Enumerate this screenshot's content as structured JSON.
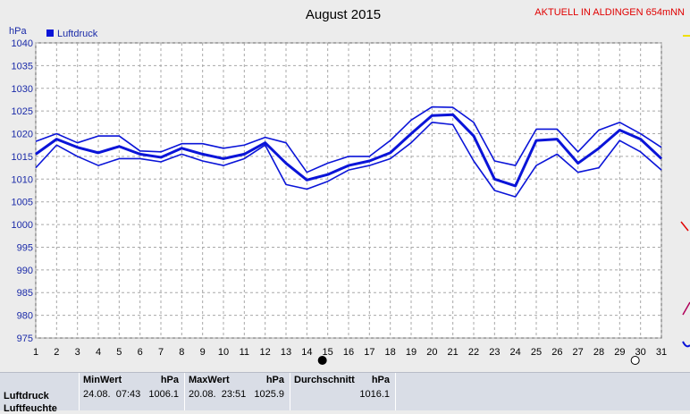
{
  "header": {
    "title": "August 2015",
    "location": "AKTUELL IN ALDINGEN 654mNN"
  },
  "colors": {
    "series": "#0a14d8",
    "grid": "#a8a8a8",
    "axis_text": "#1a2aa8",
    "location": "#e00000",
    "plot_bg": "#ffffff",
    "page_bg": "#ececec"
  },
  "chart_data": {
    "type": "line",
    "unit_label": "hPa",
    "legend": "Luftdruck",
    "legend_position": "top-left",
    "grid": true,
    "x": [
      1,
      2,
      3,
      4,
      5,
      6,
      7,
      8,
      9,
      10,
      11,
      12,
      13,
      14,
      15,
      16,
      17,
      18,
      19,
      20,
      21,
      22,
      23,
      24,
      25,
      26,
      27,
      28,
      29,
      30,
      31
    ],
    "xlim": [
      1,
      31
    ],
    "ylim": [
      975,
      1040
    ],
    "yticks": [
      975,
      980,
      985,
      990,
      995,
      1000,
      1005,
      1010,
      1015,
      1020,
      1025,
      1030,
      1035,
      1040
    ],
    "series": [
      {
        "role": "max",
        "values": [
          1018.3,
          1020.0,
          1018.0,
          1019.5,
          1019.5,
          1016.2,
          1016.0,
          1017.8,
          1017.8,
          1016.8,
          1017.5,
          1019.2,
          1018.0,
          1011.5,
          1013.5,
          1015.0,
          1015.0,
          1018.5,
          1023.0,
          1025.9,
          1025.8,
          1022.5,
          1014.0,
          1013.0,
          1021.0,
          1021.0,
          1016.0,
          1020.8,
          1022.5,
          1020.0,
          1017.0
        ]
      },
      {
        "role": "mean",
        "values": [
          1015.5,
          1018.8,
          1017.0,
          1015.8,
          1017.2,
          1015.5,
          1014.8,
          1016.8,
          1015.5,
          1014.5,
          1015.5,
          1018.0,
          1013.5,
          1009.8,
          1011.0,
          1013.0,
          1014.0,
          1015.8,
          1020.0,
          1024.0,
          1024.2,
          1019.5,
          1010.0,
          1008.5,
          1018.5,
          1018.8,
          1013.5,
          1016.8,
          1020.8,
          1018.8,
          1014.5
        ]
      },
      {
        "role": "min",
        "values": [
          1012.5,
          1017.5,
          1015.0,
          1013.0,
          1014.5,
          1014.5,
          1013.8,
          1015.5,
          1014.0,
          1013.0,
          1014.5,
          1017.5,
          1008.8,
          1007.8,
          1009.5,
          1012.0,
          1013.0,
          1014.5,
          1018.0,
          1022.5,
          1022.0,
          1014.0,
          1007.5,
          1006.1,
          1013.0,
          1015.5,
          1011.5,
          1012.5,
          1018.5,
          1016.0,
          1012.0
        ]
      }
    ],
    "moon_marks": [
      {
        "day": 15,
        "phase": "new"
      },
      {
        "day": 30,
        "phase": "full"
      }
    ]
  },
  "stats": {
    "row_label": "Luftdruck",
    "row_label_2": "Luftfeuchte",
    "min": {
      "label": "MinWert",
      "unit": "hPa",
      "date": "24.08.",
      "time": "07:43",
      "value": "1006.1"
    },
    "max": {
      "label": "MaxWert",
      "unit": "hPa",
      "date": "20.08.",
      "time": "23:51",
      "value": "1025.9"
    },
    "avg": {
      "label": "Durchschnitt",
      "unit": "hPa",
      "value": "1016.1"
    }
  }
}
